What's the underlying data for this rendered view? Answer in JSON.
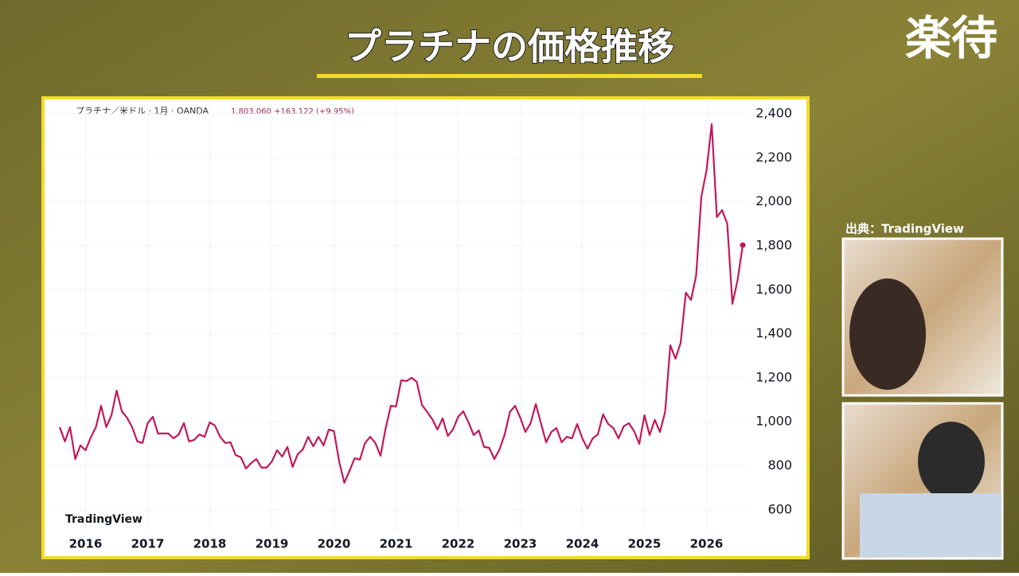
{
  "header": {
    "title": "プラチナの価格推移",
    "logo": "楽待",
    "source": "出典：TradingView"
  },
  "chart_data": {
    "type": "line",
    "symbol": "プラチナ／米ドル · 1月 · OANDA",
    "price_info": "1,803.060 +163.122 (+9.95%)",
    "watermark": "TradingView",
    "color": "#c2185b",
    "grid": true,
    "ylim": [
      502,
      2454
    ],
    "yticks": [
      {
        "value": 600,
        "label": "600"
      },
      {
        "value": 800,
        "label": "800"
      },
      {
        "value": 1000,
        "label": "1,000"
      },
      {
        "value": 1200,
        "label": "1,200"
      },
      {
        "value": 1400,
        "label": "1,400"
      },
      {
        "value": 1600,
        "label": "1,600"
      },
      {
        "value": 1800,
        "label": "1,800"
      },
      {
        "value": 2000,
        "label": "2,000"
      },
      {
        "value": 2200,
        "label": "2,200"
      },
      {
        "value": 2400,
        "label": "2,400"
      }
    ],
    "categories": [
      null,
      null,
      null,
      null,
      null,
      "2016",
      null,
      null,
      null,
      null,
      null,
      null,
      null,
      null,
      null,
      null,
      null,
      "2017",
      null,
      null,
      null,
      null,
      null,
      null,
      null,
      null,
      null,
      null,
      null,
      "2018",
      null,
      null,
      null,
      null,
      null,
      null,
      null,
      null,
      null,
      null,
      null,
      "2019",
      null,
      null,
      null,
      null,
      null,
      null,
      null,
      null,
      null,
      null,
      null,
      "2020",
      null,
      null,
      null,
      null,
      null,
      null,
      null,
      null,
      null,
      null,
      null,
      "2021",
      null,
      null,
      null,
      null,
      null,
      null,
      null,
      null,
      null,
      null,
      null,
      "2022",
      null,
      null,
      null,
      null,
      null,
      null,
      null,
      null,
      null,
      null,
      null,
      "2023",
      null,
      null,
      null,
      null,
      null,
      null,
      null,
      null,
      null,
      null,
      null,
      "2024",
      null,
      null,
      null,
      null,
      null,
      null,
      null,
      null,
      null,
      null,
      null,
      "2025",
      null,
      null,
      null,
      null,
      null,
      null,
      null,
      null,
      null,
      null,
      null,
      "2026",
      null,
      null,
      null,
      null,
      null,
      null,
      null
    ],
    "values": [
      976,
      911,
      976,
      831,
      893,
      871,
      929,
      976,
      1073,
      976,
      1030,
      1142,
      1048,
      1019,
      976,
      911,
      904,
      994,
      1023,
      947,
      947,
      947,
      925,
      943,
      994,
      911,
      918,
      943,
      932,
      998,
      983,
      932,
      904,
      907,
      849,
      839,
      788,
      813,
      831,
      792,
      792,
      820,
      871,
      842,
      886,
      795,
      853,
      875,
      932,
      889,
      932,
      893,
      965,
      958,
      820,
      723,
      777,
      835,
      828,
      904,
      932,
      904,
      846,
      972,
      1073,
      1070,
      1189,
      1185,
      1200,
      1182,
      1077,
      1045,
      1012,
      965,
      1016,
      936,
      965,
      1023,
      1048,
      998,
      940,
      961,
      886,
      882,
      831,
      875,
      943,
      1045,
      1073,
      1019,
      954,
      994,
      1081,
      994,
      907,
      954,
      972,
      907,
      932,
      925,
      990,
      925,
      878,
      925,
      943,
      1034,
      990,
      972,
      925,
      980,
      994,
      958,
      900,
      1030,
      940,
      1009,
      954,
      1045,
      1348,
      1287,
      1359,
      1587,
      1554,
      1666,
      2024,
      2143,
      2353,
      1930,
      1962,
      1901,
      1536,
      1644,
      1803.06
    ]
  }
}
